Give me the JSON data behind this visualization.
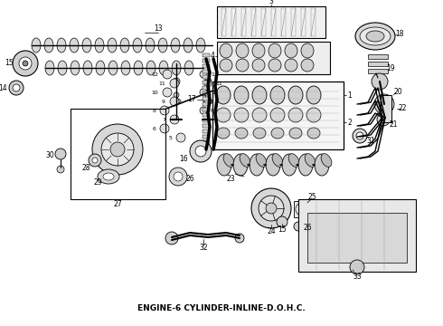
{
  "caption": "ENGINE-6 CYLINDER-INLINE-D.O.H.C.",
  "caption_fontsize": 6.5,
  "caption_fontweight": "bold",
  "background_color": "#ffffff",
  "fig_width": 4.9,
  "fig_height": 3.6,
  "dpi": 100
}
